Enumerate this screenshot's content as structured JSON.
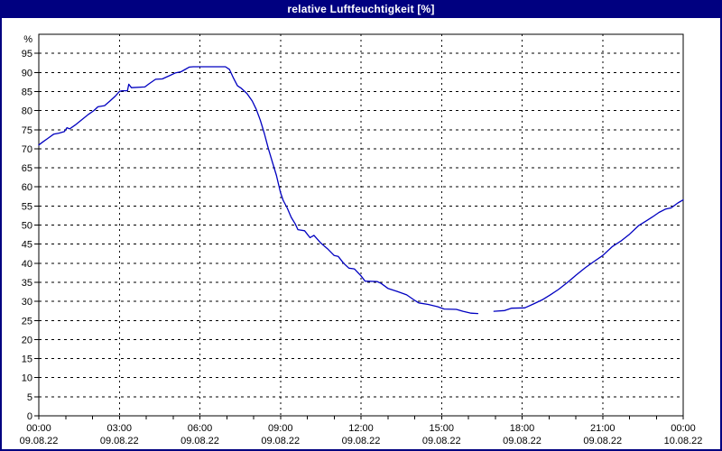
{
  "window": {
    "title": "relative Luftfeuchtigkeit [%]"
  },
  "colors": {
    "titlebar_bg": "#000080",
    "titlebar_text": "#ffffff",
    "window_border": "#000080",
    "plot_background": "#ffffff",
    "grid_color": "#000000",
    "axis_color": "#000000",
    "series_color": "#0000c0"
  },
  "chart_data": {
    "type": "line",
    "title": "relative Luftfeuchtigkeit [%]",
    "xlabel": "",
    "ylabel": "%",
    "ylim": [
      0,
      100
    ],
    "xlim_hours": [
      0,
      24
    ],
    "grid": true,
    "legend": false,
    "y_unit_label": "%",
    "y_ticks": [
      0,
      5,
      10,
      15,
      20,
      25,
      30,
      35,
      40,
      45,
      50,
      55,
      60,
      65,
      70,
      75,
      80,
      85,
      90,
      95
    ],
    "x_ticks": [
      {
        "hour": 0,
        "time": "00:00",
        "date": "09.08.22"
      },
      {
        "hour": 3,
        "time": "03:00",
        "date": "09.08.22"
      },
      {
        "hour": 6,
        "time": "06:00",
        "date": "09.08.22"
      },
      {
        "hour": 9,
        "time": "09:00",
        "date": "09.08.22"
      },
      {
        "hour": 12,
        "time": "12:00",
        "date": "09.08.22"
      },
      {
        "hour": 15,
        "time": "15:00",
        "date": "09.08.22"
      },
      {
        "hour": 18,
        "time": "18:00",
        "date": "09.08.22"
      },
      {
        "hour": 21,
        "time": "21:00",
        "date": "09.08.22"
      },
      {
        "hour": 24,
        "time": "00:00",
        "date": "10.08.22"
      }
    ],
    "series": [
      {
        "name": "relative Luftfeuchtigkeit",
        "color": "#0000c0",
        "segments": [
          [
            [
              0.0,
              71.0
            ],
            [
              0.15,
              71.8
            ],
            [
              0.35,
              72.8
            ],
            [
              0.55,
              73.8
            ],
            [
              0.75,
              74.1
            ],
            [
              0.95,
              74.5
            ],
            [
              1.05,
              75.5
            ],
            [
              1.15,
              75.2
            ],
            [
              1.35,
              76.2
            ],
            [
              1.6,
              77.6
            ],
            [
              1.85,
              79.0
            ],
            [
              2.05,
              80.0
            ],
            [
              2.2,
              81.0
            ],
            [
              2.45,
              81.3
            ],
            [
              2.65,
              82.5
            ],
            [
              2.85,
              83.8
            ],
            [
              3.0,
              85.0
            ],
            [
              3.1,
              85.2
            ],
            [
              3.3,
              85.2
            ],
            [
              3.35,
              86.9
            ],
            [
              3.45,
              86.0
            ],
            [
              3.95,
              86.2
            ],
            [
              4.1,
              87.0
            ],
            [
              4.35,
              88.2
            ],
            [
              4.6,
              88.3
            ],
            [
              4.85,
              89.1
            ],
            [
              5.1,
              89.9
            ],
            [
              5.3,
              90.2
            ],
            [
              5.6,
              91.4
            ],
            [
              5.75,
              91.5
            ],
            [
              6.95,
              91.5
            ],
            [
              7.1,
              90.8
            ],
            [
              7.25,
              88.5
            ],
            [
              7.4,
              86.5
            ],
            [
              7.55,
              85.8
            ],
            [
              7.75,
              84.5
            ],
            [
              7.95,
              82.5
            ],
            [
              8.1,
              80.3
            ],
            [
              8.25,
              77.5
            ],
            [
              8.4,
              74.0
            ],
            [
              8.55,
              70.0
            ],
            [
              8.7,
              66.5
            ],
            [
              8.85,
              63.0
            ],
            [
              9.0,
              58.5
            ],
            [
              9.1,
              56.5
            ],
            [
              9.25,
              54.5
            ],
            [
              9.4,
              52.0
            ],
            [
              9.55,
              50.3
            ],
            [
              9.65,
              48.8
            ],
            [
              9.9,
              48.5
            ],
            [
              10.1,
              46.7
            ],
            [
              10.25,
              47.3
            ],
            [
              10.5,
              45.3
            ],
            [
              10.75,
              43.8
            ],
            [
              11.0,
              42.0
            ],
            [
              11.15,
              41.8
            ],
            [
              11.35,
              40.0
            ],
            [
              11.55,
              38.7
            ],
            [
              11.75,
              38.5
            ],
            [
              12.0,
              36.7
            ],
            [
              12.15,
              35.3
            ],
            [
              12.6,
              35.2
            ],
            [
              12.75,
              34.7
            ],
            [
              13.0,
              33.4
            ],
            [
              13.35,
              32.6
            ],
            [
              13.7,
              31.7
            ],
            [
              13.95,
              30.5
            ],
            [
              14.15,
              29.6
            ],
            [
              14.5,
              29.2
            ],
            [
              14.85,
              28.6
            ],
            [
              15.1,
              28.0
            ],
            [
              15.55,
              27.9
            ],
            [
              15.8,
              27.4
            ],
            [
              16.1,
              26.9
            ],
            [
              16.35,
              26.8
            ]
          ],
          [
            [
              16.95,
              27.4
            ],
            [
              17.35,
              27.6
            ],
            [
              17.6,
              28.2
            ],
            [
              18.1,
              28.3
            ],
            [
              18.45,
              29.4
            ],
            [
              18.75,
              30.4
            ],
            [
              19.05,
              31.7
            ],
            [
              19.35,
              33.1
            ],
            [
              19.7,
              35.0
            ],
            [
              20.0,
              36.8
            ],
            [
              20.35,
              38.8
            ],
            [
              20.65,
              40.3
            ],
            [
              21.0,
              42.0
            ],
            [
              21.35,
              44.3
            ],
            [
              21.7,
              45.9
            ],
            [
              22.0,
              47.6
            ],
            [
              22.35,
              49.9
            ],
            [
              22.6,
              51.0
            ],
            [
              22.85,
              52.1
            ],
            [
              23.1,
              53.3
            ],
            [
              23.35,
              54.2
            ],
            [
              23.55,
              54.5
            ],
            [
              23.8,
              55.8
            ],
            [
              24.0,
              56.6
            ]
          ]
        ]
      }
    ]
  }
}
